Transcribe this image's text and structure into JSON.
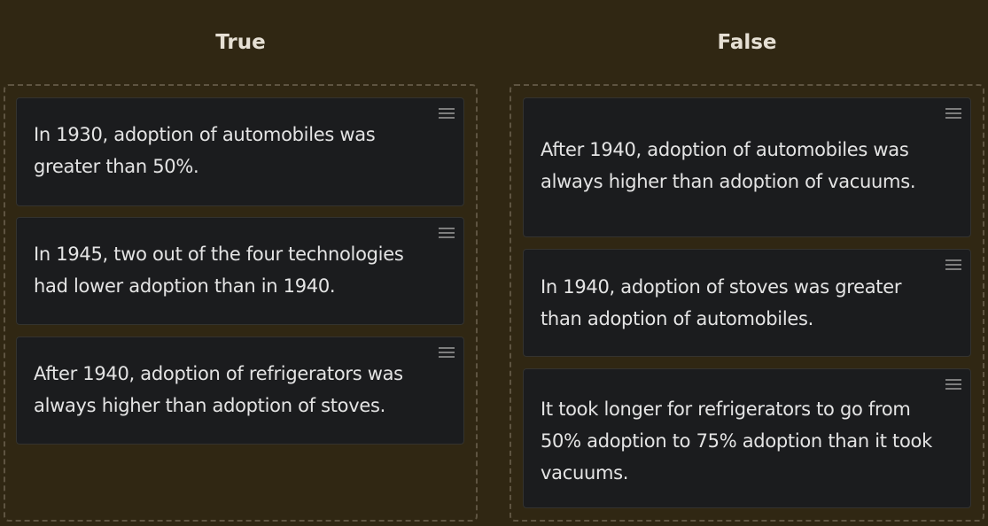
{
  "columns": [
    {
      "title": "True",
      "cards": [
        "In 1930, adoption of automobiles was greater than 50%.",
        "In 1945, two out of the four technologies had lower adoption than in 1940.",
        "After 1940, adoption of refrigerators was always higher than adoption of stoves."
      ]
    },
    {
      "title": "False",
      "cards": [
        "After 1940, adoption of automobiles was always higher than adoption of vacuums.",
        "In 1940, adoption of stoves was greater than adoption of automobiles.",
        "It took longer for refrigerators to go from 50% adoption to 75% adoption than it took vacuums."
      ]
    }
  ],
  "icons": {
    "drag_handle": "drag-handle-icon"
  },
  "colors": {
    "background": "#302713",
    "card_background": "#1b1c1e",
    "dropzone_border": "#5e5441",
    "title_text": "#e6e0d4",
    "card_text": "#e4e4e4"
  }
}
